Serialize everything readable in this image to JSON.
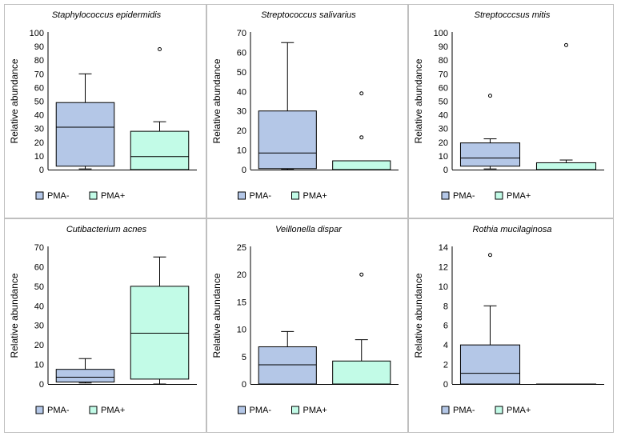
{
  "colors": {
    "pma_minus": "#b4c7e7",
    "pma_plus": "#c2fbe7"
  },
  "legend": [
    "PMA-",
    "PMA+"
  ],
  "chart_data": [
    {
      "type": "box",
      "title": "Staphylococcus epidermidis",
      "ylabel": "Relative abundance",
      "ylim": [
        0,
        100
      ],
      "yticks": [
        "0",
        "10",
        "20",
        "30",
        "40",
        "50",
        "60",
        "70",
        "80",
        "90",
        "100"
      ],
      "series": [
        {
          "name": "PMA-",
          "min": 0.5,
          "q1": 2.5,
          "median": 31,
          "q3": 49,
          "max": 70,
          "outliers": []
        },
        {
          "name": "PMA+",
          "min": 0,
          "q1": 0,
          "median": 9.5,
          "q3": 28,
          "max": 35,
          "outliers": [
            88
          ]
        }
      ]
    },
    {
      "type": "box",
      "title": "Streptococcus salivarius",
      "ylabel": "Relative abundance",
      "ylim": [
        0,
        70
      ],
      "yticks": [
        "0",
        "10",
        "20",
        "30",
        "40",
        "50",
        "60",
        "70"
      ],
      "series": [
        {
          "name": "PMA-",
          "min": 0,
          "q1": 0.5,
          "median": 8.5,
          "q3": 30,
          "max": 65,
          "outliers": []
        },
        {
          "name": "PMA+",
          "min": 0,
          "q1": 0,
          "median": 0,
          "q3": 4.5,
          "max": 4.5,
          "outliers": [
            16.5,
            39
          ]
        }
      ]
    },
    {
      "type": "box",
      "title": "Streptocccsus mitis",
      "ylabel": "Relative abundance",
      "ylim": [
        0,
        100
      ],
      "yticks": [
        "0",
        "10",
        "20",
        "30",
        "40",
        "50",
        "60",
        "70",
        "80",
        "90",
        "100"
      ],
      "series": [
        {
          "name": "PMA-",
          "min": 0.5,
          "q1": 2.5,
          "median": 8.5,
          "q3": 19.5,
          "max": 22.5,
          "outliers": [
            54
          ]
        },
        {
          "name": "PMA+",
          "min": 0,
          "q1": 0,
          "median": 0,
          "q3": 5,
          "max": 7,
          "outliers": [
            91
          ]
        }
      ]
    },
    {
      "type": "box",
      "title": "Cutibacterium acnes",
      "ylabel": "Relative abundance",
      "ylim": [
        0,
        70
      ],
      "yticks": [
        "0",
        "10",
        "20",
        "30",
        "40",
        "50",
        "60",
        "70"
      ],
      "series": [
        {
          "name": "PMA-",
          "min": 0.5,
          "q1": 1,
          "median": 3.5,
          "q3": 7.5,
          "max": 13,
          "outliers": []
        },
        {
          "name": "PMA+",
          "min": 0,
          "q1": 2.5,
          "median": 26,
          "q3": 50,
          "max": 65,
          "outliers": []
        }
      ]
    },
    {
      "type": "box",
      "title": "Veillonella dispar",
      "ylabel": "Relative abundance",
      "ylim": [
        0,
        25
      ],
      "yticks": [
        "0",
        "5",
        "10",
        "15",
        "20",
        "25"
      ],
      "series": [
        {
          "name": "PMA-",
          "min": 0,
          "q1": 0,
          "median": 3.5,
          "q3": 6.8,
          "max": 9.6,
          "outliers": []
        },
        {
          "name": "PMA+",
          "min": 0,
          "q1": 0,
          "median": 0,
          "q3": 4.2,
          "max": 8.1,
          "outliers": [
            20
          ]
        }
      ]
    },
    {
      "type": "box",
      "title": "Rothia mucilaginosa",
      "ylabel": "Relative abundance",
      "ylim": [
        0,
        14
      ],
      "yticks": [
        "0",
        "2",
        "4",
        "6",
        "8",
        "10",
        "12",
        "14"
      ],
      "series": [
        {
          "name": "PMA-",
          "min": 0,
          "q1": 0,
          "median": 1.1,
          "q3": 4,
          "max": 8,
          "outliers": [
            13.2
          ]
        },
        {
          "name": "PMA+",
          "min": 0,
          "q1": 0,
          "median": 0,
          "q3": 0,
          "max": 0,
          "outliers": []
        }
      ]
    }
  ]
}
